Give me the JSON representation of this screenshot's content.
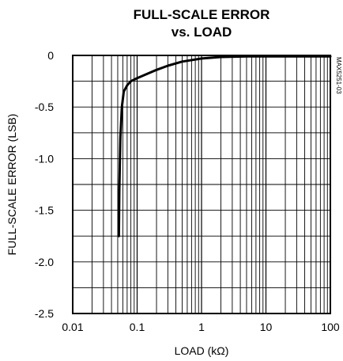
{
  "chart_data": {
    "type": "line",
    "title": [
      "FULL-SCALE ERROR",
      "vs. LOAD"
    ],
    "xlabel": "LOAD (kΩ)",
    "ylabel": "FULL-SCALE ERROR (LSB)",
    "xscale": "log",
    "xlim": [
      0.01,
      100
    ],
    "ylim": [
      -2.5,
      0
    ],
    "x_ticks": [
      0.01,
      0.1,
      1,
      10,
      100
    ],
    "x_tick_labels": [
      "0.01",
      "0.1",
      "1",
      "10",
      "100"
    ],
    "y_ticks": [
      0,
      -0.5,
      -1.0,
      -1.5,
      -2.0,
      -2.5
    ],
    "y_tick_labels": [
      "0",
      "-0.5",
      "-1.0",
      "-1.5",
      "-2.0",
      "-2.5"
    ],
    "y_minor_step": 0.25,
    "grid": true,
    "side_code": "MAX5251-03",
    "series": [
      {
        "x": [
          0.052,
          0.053,
          0.055,
          0.058,
          0.062,
          0.07,
          0.08,
          0.1,
          0.13,
          0.2,
          0.3,
          0.5,
          0.8,
          1,
          2,
          5,
          10,
          100
        ],
        "y": [
          -1.75,
          -1.3,
          -0.8,
          -0.5,
          -0.35,
          -0.29,
          -0.25,
          -0.22,
          -0.19,
          -0.14,
          -0.1,
          -0.06,
          -0.04,
          -0.03,
          -0.015,
          -0.01,
          -0.01,
          -0.01
        ]
      }
    ]
  }
}
